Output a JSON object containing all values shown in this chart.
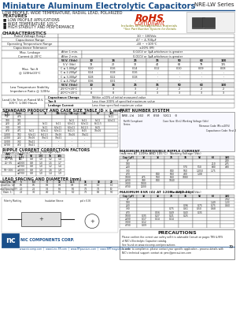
{
  "title": "Miniature Aluminum Electrolytic Capacitors",
  "series": "NRE-LW Series",
  "subtitle": "LOW PROFILE, WIDE TEMPERATURE, RADIAL LEAD, POLARIZED",
  "features": [
    "LOW PROFILE APPLICATIONS",
    "WIDE TEMPERATURE 105°C",
    "HIGH STABILITY AND PERFORMANCE"
  ],
  "rohs_sub": "Includes all homogeneous materials",
  "rohs_sub2": "*See Part Number System for Details",
  "char_rows": [
    [
      "Rated Voltage Range",
      "",
      "10 ~ 100Vdc"
    ],
    [
      "Capacitance Range",
      "",
      "47 ~ 4,700μF"
    ],
    [
      "Operating Temperature Range",
      "",
      "-40 ~ +105°C"
    ],
    [
      "Capacitance Tolerance",
      "",
      "±20% (M)"
    ]
  ],
  "leak_rows": [
    [
      "After 1 min.",
      "0.02CV or 3μA whichever is greater"
    ],
    [
      "After 2 min.",
      "0.01CV or 3μA whichever is greater"
    ]
  ],
  "tan_header": [
    "W.V. (Vdc)",
    "10",
    "16",
    "25",
    "35",
    "50",
    "63",
    "100"
  ],
  "tan_rows": [
    [
      "S.V. (Vdc)",
      "13",
      "20",
      "32",
      "44",
      "63",
      "79",
      "125"
    ],
    [
      "C ≤ 1,000μF",
      "0.20",
      "0.16",
      "0.14",
      "0.12",
      "0.10",
      "0.09",
      "0.08"
    ],
    [
      "C ≤ 2,200μF",
      "0.24",
      "0.18",
      "0.16",
      "-",
      "-",
      "-",
      "-"
    ],
    [
      "C ≤ 3,300μF",
      "0.28",
      "0.22",
      "0.18",
      "-",
      "-",
      "-",
      "-"
    ],
    [
      "C ≤ 4,700μF",
      "0.36",
      "0.31",
      "-",
      "-",
      "-",
      "-",
      "-"
    ]
  ],
  "imp_header": [
    "W.V. (Vdc)",
    "10",
    "16",
    "25",
    "35",
    "50",
    "63",
    "100"
  ],
  "imp_rows": [
    [
      "-25°C/+20°C",
      "3",
      "3",
      "3",
      "2",
      "2",
      "2",
      "2"
    ],
    [
      "-40°C/+20°C",
      "8",
      "8",
      "4",
      "3",
      "3",
      "3",
      "3"
    ]
  ],
  "load_life": [
    [
      "Capacitance Change",
      "Within ±20% of initial measured value"
    ],
    [
      "Tan δ",
      "Less than 200% of specified maximum value"
    ],
    [
      "Leakage Current",
      "Less than specified maximum value"
    ]
  ],
  "cap_header": [
    "Cap\n(μF)",
    "Code",
    "10",
    "16",
    "25",
    "35",
    "50",
    "63",
    "100"
  ],
  "cap_rows": [
    [
      "47",
      "476",
      "",
      "",
      "",
      "",
      "",
      "",
      "5x11"
    ],
    [
      "100",
      "101",
      "",
      "",
      "",
      "5x11",
      "5x11",
      "5x11",
      "6.3x11"
    ],
    [
      "220",
      "221",
      "",
      "5x11",
      "5x11",
      "6.3x11",
      "6.3x11",
      "8x11.5",
      ""
    ],
    [
      "330",
      "331",
      "",
      "5x11",
      "6.3x11",
      "6.3x11",
      "8x11.5",
      "8x15",
      ""
    ],
    [
      "470",
      "471",
      "5x11",
      "6.3x11",
      "6.3x11",
      "8x11.5",
      "8x15",
      "10x16",
      ""
    ],
    [
      "1,000",
      "102",
      "6.3x11",
      "8x11.5",
      "10x16",
      "10x16",
      "10x21",
      "",
      ""
    ],
    [
      "2,200",
      "222",
      "10x16",
      "10x21",
      "10x21",
      "-",
      "-",
      "",
      ""
    ],
    [
      "3,300",
      "332",
      "10x21",
      "-",
      "-",
      "-",
      "-",
      "",
      ""
    ],
    [
      "4,700",
      "472",
      "10x21",
      "-",
      "-",
      "-",
      "-",
      "",
      ""
    ]
  ],
  "ripple_header": [
    "Cap (μF)",
    "10",
    "16",
    "25",
    "35",
    "50",
    "63",
    "100"
  ],
  "ripple_rows": [
    [
      "47",
      "",
      "",
      "",
      "",
      "",
      "",
      "240"
    ],
    [
      "100",
      "",
      "",
      "",
      "",
      "",
      "210",
      "275"
    ],
    [
      "220",
      "",
      "",
      "",
      "570",
      "510",
      "880",
      "490"
    ],
    [
      "330",
      "",
      "",
      "840",
      "560",
      "1,050",
      "1.75",
      ""
    ],
    [
      "470",
      "",
      "840",
      "660",
      "430",
      "1.08",
      "",
      ""
    ],
    [
      "1000",
      "475",
      "560",
      "860",
      "1080",
      "",
      "",
      ""
    ],
    [
      "2200",
      "740",
      "840",
      "1040",
      "",
      "",
      "",
      ""
    ],
    [
      "3300",
      "1000",
      "",
      "",
      "",
      "",
      "",
      ""
    ],
    [
      "4700",
      "1200",
      "",
      "",
      "",
      "",
      "",
      ""
    ]
  ],
  "esr_header": [
    "Cap (μF)",
    "10",
    "16",
    "25",
    "35",
    "50",
    "63",
    "100"
  ],
  "esr_rows": [
    [
      "47",
      "",
      "",
      "",
      "",
      "",
      "",
      "2.62"
    ],
    [
      "100",
      "",
      "",
      "",
      "",
      "",
      "1.49",
      "1.33"
    ],
    [
      "220",
      "",
      "",
      "",
      "0.96",
      "0.75",
      "0.75",
      "0.60"
    ],
    [
      "330",
      "",
      "",
      "0.75",
      "0.61",
      "0.50",
      "0.68",
      ""
    ],
    [
      "470",
      "",
      "0.56",
      "0.49",
      "0.43",
      "0.35",
      "",
      ""
    ],
    [
      "1000",
      "0.35",
      "0.27",
      "0.21",
      "0.25",
      "",
      "",
      ""
    ],
    [
      "2200",
      "0.17",
      "0.14",
      "0.14",
      "",
      "",
      "",
      ""
    ],
    [
      "3300",
      "0.12",
      "",
      "",
      "",
      "",
      "",
      ""
    ],
    [
      "4700",
      "0.09",
      "",
      "",
      "",
      "",
      "",
      ""
    ]
  ],
  "rcf_header": [
    "Freq.",
    "Cap\n(μF)",
    "Working Voltage (Vdc)",
    "",
    "",
    ""
  ],
  "rcf_freq_header": [
    "W.V.\n(Vdc)",
    "Cap\n(μF)",
    "50",
    "120",
    "1k",
    "10k"
  ],
  "rcf_rows": [
    [
      "6.3~16",
      "ALL",
      "0.8",
      "1.0",
      "1.2",
      "1.4"
    ],
    [
      "25~35",
      "≤1000",
      "0.8",
      "1.0",
      "1.5",
      "1.7"
    ],
    [
      "",
      "≤4700",
      "0.8",
      "1.0",
      "1.2",
      "1.4"
    ],
    [
      "50~100",
      "≤1000",
      "0.8",
      "1.0",
      "1.6",
      "1.9"
    ],
    [
      "",
      "≤4700",
      "0.8",
      "1.0",
      "1.4",
      "1.9"
    ]
  ],
  "lead_header": [
    "Case Dia. (D)",
    "5",
    "6.3",
    "8",
    "10",
    "12.5",
    "16",
    "18",
    "20"
  ],
  "lead_rows": [
    [
      "Lead Dia. (d)",
      "0.5",
      "0.5",
      "0.6",
      "0.6",
      "0.8",
      "0.8",
      "1.0",
      "1.0"
    ],
    [
      "Lead Spacing (F)",
      "2.0",
      "2.5",
      "3.5",
      "5.0",
      "5.0",
      "7.5",
      "7.5",
      "10"
    ],
    [
      "Diam. 1:",
      "2.5",
      "3.0",
      "4.0",
      "5.5",
      "6.0",
      "7.5",
      "8.5",
      "9.0"
    ]
  ],
  "bg_color": "#ffffff",
  "header_blue": "#1a4f8a",
  "gray": "#666666",
  "lgray": "#e0e0e0"
}
